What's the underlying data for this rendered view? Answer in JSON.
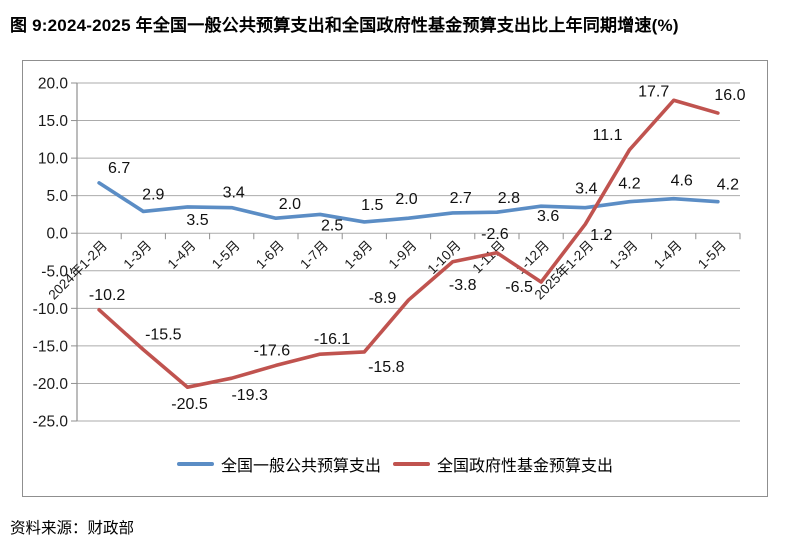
{
  "title": "图 9:2024-2025 年全国一般公共预算支出和全国政府性基金预算支出比上年同期增速(%)",
  "source": "资料来源：财政部",
  "chart_data": {
    "type": "line",
    "categories": [
      "2024年1-2月",
      "1-3月",
      "1-4月",
      "1-5月",
      "1-6月",
      "1-7月",
      "1-8月",
      "1-9月",
      "1-10月",
      "1-11月",
      "1-12月",
      "2025年1-2月",
      "1-3月",
      "1-4月",
      "1-5月"
    ],
    "series": [
      {
        "name": "全国一般公共预算支出",
        "color": "#5b8dc5",
        "values": [
          6.7,
          2.9,
          3.5,
          3.4,
          2.0,
          2.5,
          1.5,
          2.0,
          2.7,
          2.8,
          3.6,
          3.4,
          4.2,
          4.6,
          4.2
        ]
      },
      {
        "name": "全国政府性基金预算支出",
        "color": "#c0534f",
        "values": [
          -10.2,
          -15.5,
          -20.5,
          -19.3,
          -17.6,
          -16.1,
          -15.8,
          -8.9,
          -3.8,
          -2.6,
          -6.5,
          1.2,
          11.1,
          17.7,
          16.0
        ]
      }
    ],
    "ylabel": "",
    "xlabel": "",
    "ylim": [
      -25,
      20
    ],
    "ytick_step": 5,
    "ytick_labels": [
      "20.0",
      "15.0",
      "10.0",
      "5.0",
      "0.0",
      "-5.0",
      "-10.0",
      "-15.0",
      "-20.0",
      "-25.0"
    ],
    "grid": true,
    "legend_position": "bottom"
  }
}
